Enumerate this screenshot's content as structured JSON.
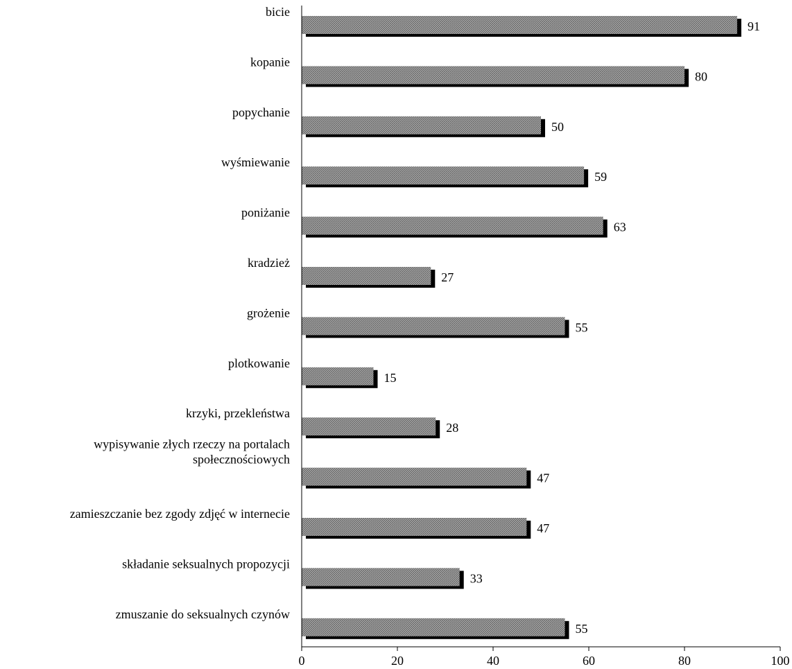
{
  "chart_data": {
    "type": "bar",
    "orientation": "horizontal",
    "title": "",
    "xlabel": "",
    "ylabel": "",
    "xlim": [
      0,
      100
    ],
    "xticks": [
      0,
      20,
      40,
      60,
      80,
      100
    ],
    "grid": false,
    "legend": "none",
    "colors": {
      "bar_fill": "#9a9a9a",
      "bar_hatch": "#5a5a5a",
      "bar_shadow": "#000000",
      "text": "#000000",
      "axis": "#000000"
    },
    "categories": [
      "bicie",
      "kopanie",
      "popychanie",
      "wyśmiewanie",
      "poniżanie",
      "kradzież",
      "grożenie",
      "plotkowanie",
      "krzyki, przekleństwa",
      "wypisywanie złych rzeczy na portalach społecznościowych",
      "zamieszczanie bez zgody zdjęć w internecie",
      "składanie seksualnych propozycji",
      "zmuszanie do seksualnych czynów"
    ],
    "category_lines": [
      [
        "bicie"
      ],
      [
        "kopanie"
      ],
      [
        "popychanie"
      ],
      [
        "wyśmiewanie"
      ],
      [
        "poniżanie"
      ],
      [
        "kradzież"
      ],
      [
        "grożenie"
      ],
      [
        "plotkowanie"
      ],
      [
        "krzyki, przekleństwa"
      ],
      [
        "wypisywanie złych rzeczy na portalach",
        "społecznościowych"
      ],
      [
        "zamieszczanie bez zgody zdjęć w internecie"
      ],
      [
        "składanie seksualnych propozycji"
      ],
      [
        "zmuszanie do seksualnych czynów"
      ]
    ],
    "values": [
      91,
      80,
      50,
      59,
      63,
      27,
      55,
      15,
      28,
      47,
      47,
      33,
      55
    ],
    "value_labels": [
      "91",
      "80",
      "50",
      "59",
      "63",
      "27",
      "55",
      "15",
      "28",
      "47",
      "47",
      "33",
      "55"
    ]
  }
}
